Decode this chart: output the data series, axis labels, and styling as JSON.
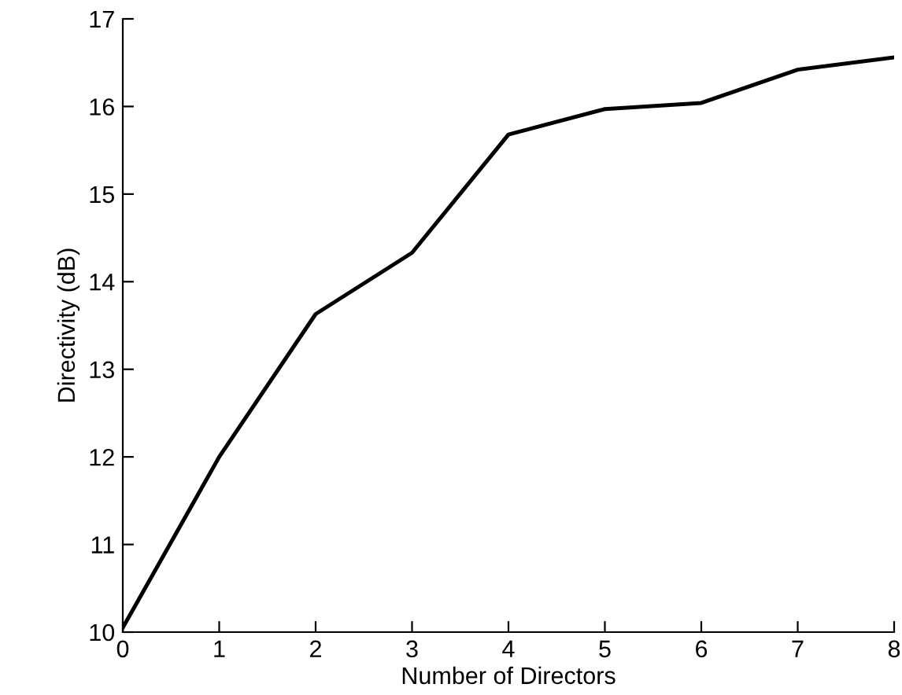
{
  "chart_data": {
    "type": "line",
    "xlabel": "Number of Directors",
    "ylabel": "Directivity (dB)",
    "x": [
      0,
      1,
      2,
      3,
      4,
      5,
      6,
      7,
      8
    ],
    "series": [
      {
        "color": "#000000",
        "values": [
          10.05,
          12.0,
          13.63,
          14.33,
          15.68,
          15.97,
          16.04,
          16.42,
          16.56
        ]
      }
    ],
    "xlim": [
      0,
      8
    ],
    "ylim": [
      10,
      17
    ],
    "xticks": [
      0,
      1,
      2,
      3,
      4,
      5,
      6,
      7,
      8
    ],
    "yticks": [
      10,
      11,
      12,
      13,
      14,
      15,
      16,
      17
    ],
    "grid": false,
    "legend": false,
    "marker": "none",
    "line_style": "solid"
  }
}
